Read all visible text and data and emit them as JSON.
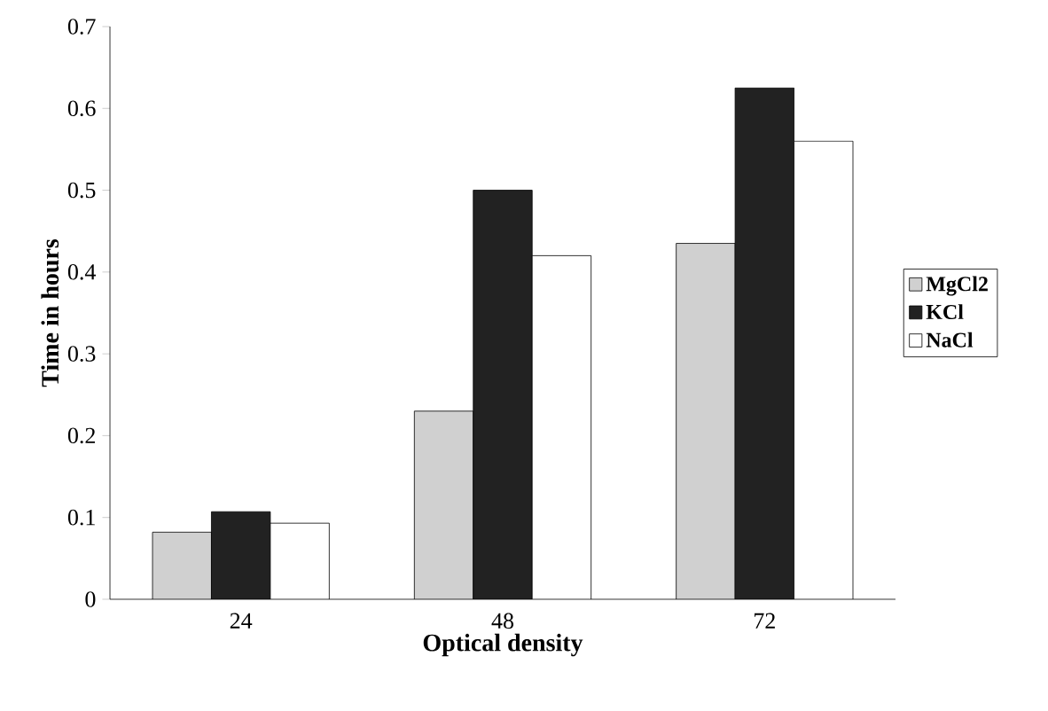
{
  "chart_data": {
    "type": "bar",
    "xlabel": "Optical density",
    "ylabel": "Time in hours",
    "categories": [
      "24",
      "48",
      "72"
    ],
    "series": [
      {
        "name": "MgCl2",
        "color": "#d0d0d0",
        "values": [
          0.082,
          0.23,
          0.435
        ]
      },
      {
        "name": "KCl",
        "color": "#222222",
        "values": [
          0.107,
          0.5,
          0.625
        ]
      },
      {
        "name": "NaCl",
        "color": "#ffffff",
        "values": [
          0.093,
          0.42,
          0.56
        ]
      }
    ],
    "ylim": [
      0,
      0.7
    ],
    "yticks": [
      0,
      0.1,
      0.2,
      0.3,
      0.4,
      0.5,
      0.6,
      0.7
    ],
    "legend": "right",
    "grid": false
  }
}
